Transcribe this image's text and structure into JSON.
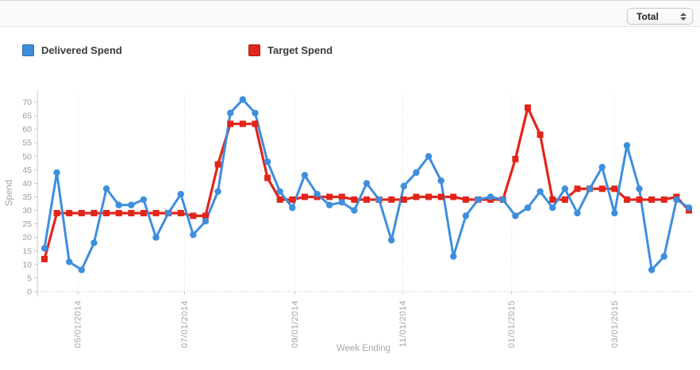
{
  "header": {
    "filter_select": {
      "value": "Total"
    }
  },
  "legend": [
    {
      "label": "Delivered Spend",
      "color": "#3e8ede"
    },
    {
      "label": "Target Spend",
      "color": "#e2251b"
    }
  ],
  "chart_data": {
    "type": "line",
    "title": "",
    "xlabel": "Week Ending",
    "ylabel": "Spend",
    "ylim": [
      0,
      70
    ],
    "y_ticks": [
      0,
      5,
      10,
      15,
      20,
      25,
      30,
      35,
      40,
      45,
      50,
      55,
      60,
      65,
      70
    ],
    "grid": {
      "vertical": "dotted at date ticks",
      "horizontal": "dashed zero line only"
    },
    "x_unit": "weekly points, index 0-52",
    "x_ticks": [
      {
        "pos": 2.7,
        "label": "05/01/2014"
      },
      {
        "pos": 11.3,
        "label": "07/01/2014"
      },
      {
        "pos": 20.2,
        "label": "09/01/2014"
      },
      {
        "pos": 28.9,
        "label": "11/01/2014"
      },
      {
        "pos": 37.7,
        "label": "01/01/2015"
      },
      {
        "pos": 46.0,
        "label": "03/01/2015"
      }
    ],
    "legend_position": "top",
    "series": [
      {
        "name": "Delivered Spend",
        "color": "#3e8ede",
        "marker": "circle",
        "values": [
          16,
          44,
          11,
          8,
          18,
          38,
          32,
          32,
          34,
          20,
          29,
          36,
          21,
          26,
          37,
          66,
          71,
          66,
          48,
          37,
          31,
          43,
          36,
          32,
          33,
          30,
          40,
          34,
          19,
          39,
          44,
          50,
          41,
          13,
          28,
          34,
          35,
          34,
          28,
          31,
          37,
          31,
          38,
          29,
          38,
          46,
          29,
          54,
          38,
          8,
          13,
          34,
          31
        ]
      },
      {
        "name": "Target Spend",
        "color": "#e2251b",
        "marker": "square",
        "values": [
          12,
          29,
          29,
          29,
          29,
          29,
          29,
          29,
          29,
          29,
          29,
          29,
          28,
          28,
          47,
          62,
          62,
          62,
          42,
          34,
          34,
          35,
          35,
          35,
          35,
          34,
          34,
          34,
          34,
          34,
          35,
          35,
          35,
          35,
          34,
          34,
          34,
          34,
          49,
          68,
          58,
          34,
          34,
          38,
          38,
          38,
          38,
          34,
          34,
          34,
          34,
          35,
          30
        ]
      }
    ]
  }
}
